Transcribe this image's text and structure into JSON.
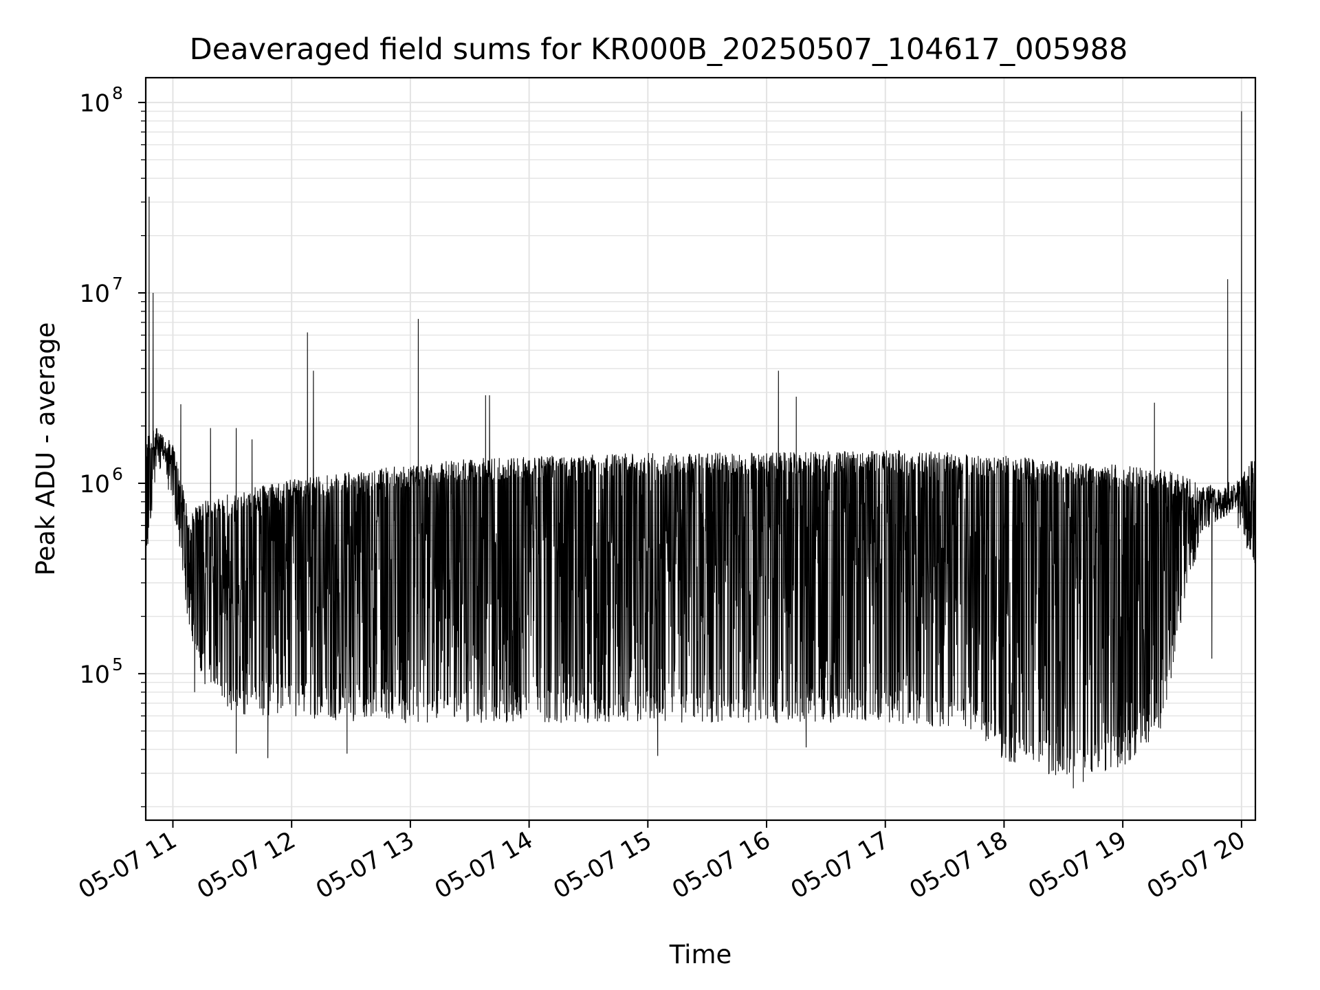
{
  "chart_data": {
    "type": "line",
    "title": "Deaveraged field sums for KR000B_20250507_104617_005988",
    "xlabel": "Time",
    "ylabel": "Peak ADU - average",
    "yscale": "log",
    "ylim": [
      17000,
      135000000
    ],
    "xlim": [
      "2025-05-07 10:46:17",
      "2025-05-07 20:07:00"
    ],
    "grid": true,
    "line_color": "#000000",
    "x_ticks": [
      {
        "label": "05-07 11",
        "t": "2025-05-07 11:00"
      },
      {
        "label": "05-07 12",
        "t": "2025-05-07 12:00"
      },
      {
        "label": "05-07 13",
        "t": "2025-05-07 13:00"
      },
      {
        "label": "05-07 14",
        "t": "2025-05-07 14:00"
      },
      {
        "label": "05-07 15",
        "t": "2025-05-07 15:00"
      },
      {
        "label": "05-07 16",
        "t": "2025-05-07 16:00"
      },
      {
        "label": "05-07 17",
        "t": "2025-05-07 17:00"
      },
      {
        "label": "05-07 18",
        "t": "2025-05-07 18:00"
      },
      {
        "label": "05-07 19",
        "t": "2025-05-07 19:00"
      },
      {
        "label": "05-07 20",
        "t": "2025-05-07 20:00"
      }
    ],
    "y_ticks": [
      {
        "base": "10",
        "exp": "5",
        "value": 100000
      },
      {
        "base": "10",
        "exp": "6",
        "value": 1000000
      },
      {
        "base": "10",
        "exp": "7",
        "value": 10000000
      },
      {
        "base": "10",
        "exp": "8",
        "value": 100000000
      }
    ],
    "series": [
      {
        "envelope": [
          {
            "t": "2025-05-07 10:46:17",
            "lo": 350000,
            "hi": 1800000
          },
          {
            "t": "2025-05-07 10:52",
            "lo": 1200000,
            "hi": 2000000
          },
          {
            "t": "2025-05-07 11:00",
            "lo": 700000,
            "hi": 1600000
          },
          {
            "t": "2025-05-07 11:08",
            "lo": 180000,
            "hi": 700000
          },
          {
            "t": "2025-05-07 11:15",
            "lo": 90000,
            "hi": 800000
          },
          {
            "t": "2025-05-07 11:30",
            "lo": 60000,
            "hi": 900000
          },
          {
            "t": "2025-05-07 12:00",
            "lo": 60000,
            "hi": 1050000
          },
          {
            "t": "2025-05-07 12:30",
            "lo": 55000,
            "hi": 1150000
          },
          {
            "t": "2025-05-07 13:00",
            "lo": 55000,
            "hi": 1250000
          },
          {
            "t": "2025-05-07 13:30",
            "lo": 55000,
            "hi": 1350000
          },
          {
            "t": "2025-05-07 14:00",
            "lo": 55000,
            "hi": 1400000
          },
          {
            "t": "2025-05-07 15:00",
            "lo": 55000,
            "hi": 1450000
          },
          {
            "t": "2025-05-07 16:00",
            "lo": 55000,
            "hi": 1450000
          },
          {
            "t": "2025-05-07 17:00",
            "lo": 55000,
            "hi": 1500000
          },
          {
            "t": "2025-05-07 17:45",
            "lo": 50000,
            "hi": 1450000
          },
          {
            "t": "2025-05-07 18:00",
            "lo": 35000,
            "hi": 1400000
          },
          {
            "t": "2025-05-07 18:30",
            "lo": 28000,
            "hi": 1300000
          },
          {
            "t": "2025-05-07 19:00",
            "lo": 32000,
            "hi": 1250000
          },
          {
            "t": "2025-05-07 19:20",
            "lo": 50000,
            "hi": 1200000
          },
          {
            "t": "2025-05-07 19:30",
            "lo": 200000,
            "hi": 1100000
          },
          {
            "t": "2025-05-07 19:40",
            "lo": 550000,
            "hi": 1000000
          },
          {
            "t": "2025-05-07 19:55",
            "lo": 700000,
            "hi": 950000
          },
          {
            "t": "2025-05-07 20:07",
            "lo": 350000,
            "hi": 1400000
          }
        ],
        "spikes": [
          {
            "t": "2025-05-07 10:48",
            "y": 32000000
          },
          {
            "t": "2025-05-07 10:50",
            "y": 10000000
          },
          {
            "t": "2025-05-07 11:04",
            "y": 2600000
          },
          {
            "t": "2025-05-07 11:19",
            "y": 1950000
          },
          {
            "t": "2025-05-07 11:32",
            "y": 1950000
          },
          {
            "t": "2025-05-07 11:40",
            "y": 1700000
          },
          {
            "t": "2025-05-07 12:08",
            "y": 2300000
          },
          {
            "t": "2025-05-07 12:08",
            "y": 6200000
          },
          {
            "t": "2025-05-07 12:11",
            "y": 3900000
          },
          {
            "t": "2025-05-07 13:04",
            "y": 7300000
          },
          {
            "t": "2025-05-07 13:38",
            "y": 2900000
          },
          {
            "t": "2025-05-07 13:40",
            "y": 2900000
          },
          {
            "t": "2025-05-07 16:06",
            "y": 3900000
          },
          {
            "t": "2025-05-07 16:15",
            "y": 2850000
          },
          {
            "t": "2025-05-07 19:16",
            "y": 2650000
          },
          {
            "t": "2025-05-07 19:53",
            "y": 11800000
          },
          {
            "t": "2025-05-07 20:00",
            "y": 90000000
          }
        ],
        "dips": [
          {
            "t": "2025-05-07 11:11",
            "y": 80000
          },
          {
            "t": "2025-05-07 11:32",
            "y": 38000
          },
          {
            "t": "2025-05-07 11:48",
            "y": 36000
          },
          {
            "t": "2025-05-07 12:28",
            "y": 38000
          },
          {
            "t": "2025-05-07 15:05",
            "y": 37000
          },
          {
            "t": "2025-05-07 16:20",
            "y": 41000
          },
          {
            "t": "2025-05-07 18:35",
            "y": 25000
          },
          {
            "t": "2025-05-07 18:40",
            "y": 27000
          },
          {
            "t": "2025-05-07 19:45",
            "y": 120000
          }
        ]
      }
    ]
  }
}
